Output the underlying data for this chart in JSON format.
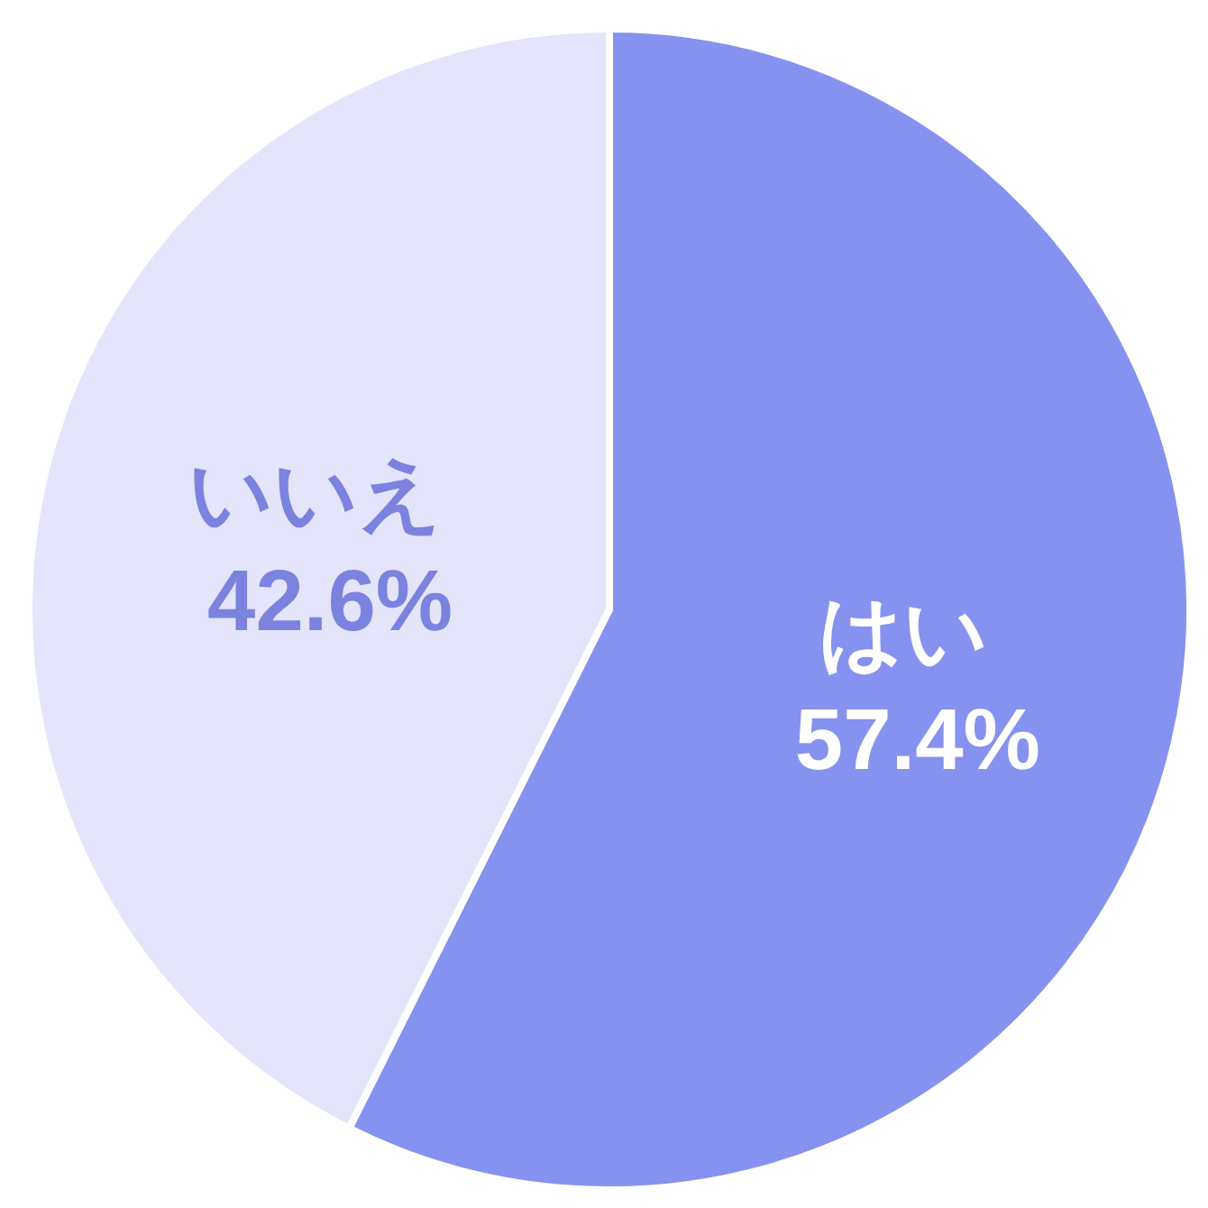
{
  "chart_data": {
    "type": "pie",
    "categories": [
      "はい",
      "いいえ"
    ],
    "values": [
      57.4,
      42.6
    ],
    "colors": [
      "#8692ef",
      "#e4e4fb"
    ],
    "value_labels": [
      "57.4%",
      "42.6%"
    ]
  }
}
